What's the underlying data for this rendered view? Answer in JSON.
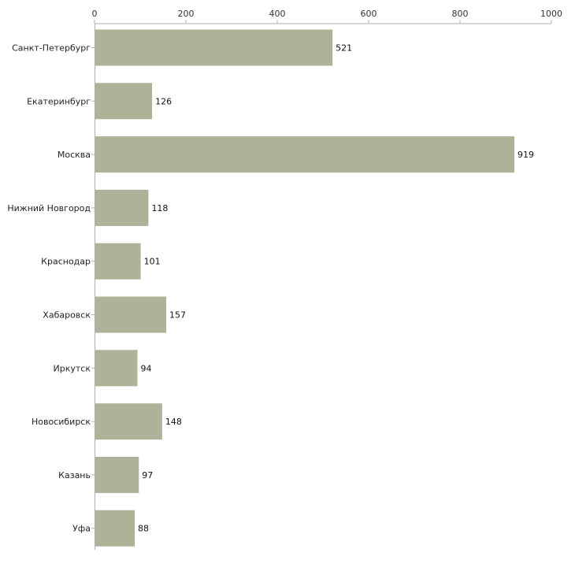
{
  "chart_data": {
    "type": "bar",
    "orientation": "horizontal",
    "title": "",
    "xlabel": "",
    "ylabel": "",
    "xlim": [
      0,
      1000
    ],
    "ticks": [
      "0",
      "200",
      "400",
      "600",
      "800",
      "1000"
    ],
    "tick_values": [
      0,
      200,
      400,
      600,
      800,
      1000
    ],
    "categories": [
      "Санкт-Петербург",
      "Екатеринбург",
      "Москва",
      "Нижний Новгород",
      "Краснодар",
      "Хабаровск",
      "Иркутск",
      "Новосибирск",
      "Казань",
      "Уфа"
    ],
    "values": [
      521,
      126,
      919,
      118,
      101,
      157,
      94,
      148,
      97,
      88
    ],
    "value_labels": [
      "521",
      "126",
      "919",
      "118",
      "101",
      "157",
      "94",
      "148",
      "97",
      "88"
    ],
    "grid": false,
    "legend": "none",
    "bar_color": "#adb398",
    "axis_color": "#b0b0b0"
  }
}
